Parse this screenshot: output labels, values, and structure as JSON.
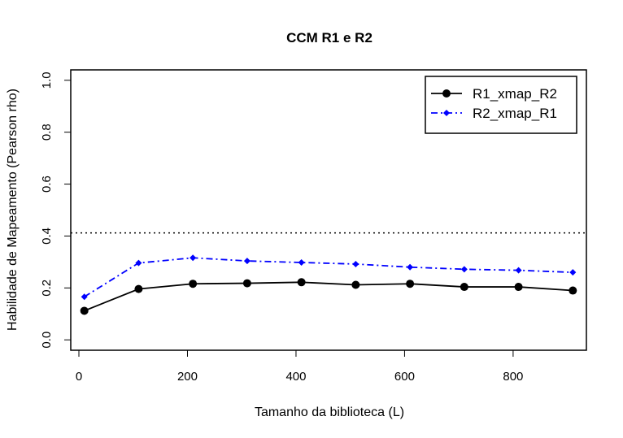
{
  "chart_data": {
    "type": "line",
    "title": "CCM R1 e R2",
    "xlabel": "Tamanho da biblioteca (L)",
    "ylabel": "Habilidade de Mapeamento (Pearson rho)",
    "xlim": [
      -15,
      935
    ],
    "ylim": [
      -0.04,
      1.04
    ],
    "x_ticks": [
      0,
      200,
      400,
      600,
      800
    ],
    "x_tick_labels": [
      "0",
      "200",
      "400",
      "600",
      "800"
    ],
    "y_ticks": [
      0.0,
      0.2,
      0.4,
      0.6,
      0.8,
      1.0
    ],
    "y_tick_labels": [
      "0.0",
      "0.2",
      "0.4",
      "0.6",
      "0.8",
      "1.0"
    ],
    "x": [
      10,
      110,
      210,
      310,
      410,
      510,
      610,
      710,
      810,
      910
    ],
    "series": [
      {
        "name": "R1_xmap_R2",
        "color": "#000000",
        "line_style": "solid",
        "marker": "circle",
        "values": [
          0.112,
          0.196,
          0.216,
          0.218,
          0.222,
          0.212,
          0.216,
          0.204,
          0.204,
          0.19
        ]
      },
      {
        "name": "R2_xmap_R1",
        "color": "#0000ff",
        "line_style": "dashdot",
        "marker": "diamond",
        "values": [
          0.166,
          0.296,
          0.316,
          0.304,
          0.298,
          0.292,
          0.28,
          0.272,
          0.268,
          0.26
        ]
      }
    ],
    "reference_line": {
      "y": 0.412,
      "style": "dotted",
      "color": "#000000"
    },
    "legend_position": "top-right",
    "grid": false
  }
}
